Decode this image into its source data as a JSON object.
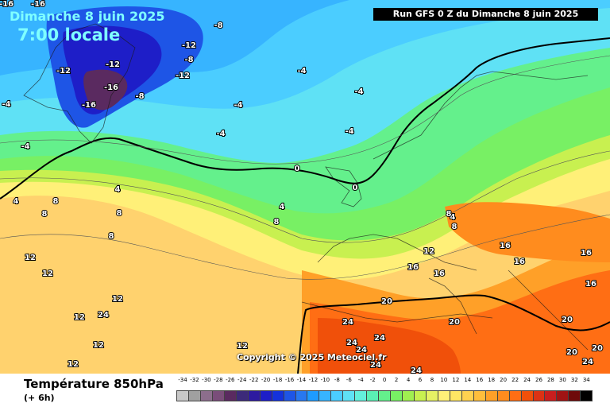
{
  "header": {
    "date_title": "Dimanche 8 juin 2025",
    "time_title": "7:00 locale",
    "run_info": "Run GFS 0 Z du Dimanche 8 juin 2025"
  },
  "copyright": "Copyright © 2025 Meteociel.fr",
  "footer": {
    "title": "Température 850hPa",
    "subtitle": "(+ 6h)"
  },
  "legend": {
    "ticks": [
      "-34",
      "-32",
      "-30",
      "-28",
      "-26",
      "-24",
      "-22",
      "-20",
      "-18",
      "-16",
      "-14",
      "-12",
      "-10",
      "-8",
      "-6",
      "-4",
      "-2",
      "0",
      "2",
      "4",
      "6",
      "8",
      "10",
      "12",
      "14",
      "16",
      "18",
      "20",
      "22",
      "24",
      "26",
      "28",
      "30",
      "32",
      "34"
    ],
    "colors": [
      "#c8c8c8",
      "#a0a0a0",
      "#8c6e8c",
      "#7a4d7a",
      "#5a2a60",
      "#3c2a7a",
      "#2d1aa0",
      "#1e1ec8",
      "#1432dc",
      "#1e55e6",
      "#2878f0",
      "#1e9bff",
      "#37b4ff",
      "#4bcdff",
      "#5fe1f5",
      "#64f0dc",
      "#5af0b4",
      "#64f08c",
      "#78f064",
      "#a0f050",
      "#c8f050",
      "#e6f064",
      "#fff078",
      "#ffe664",
      "#ffd250",
      "#ffbe3c",
      "#ffa028",
      "#ff8c1e",
      "#ff6e14",
      "#f0500a",
      "#dc3214",
      "#c81e1e",
      "#a01414",
      "#6e0a0a",
      "#000000"
    ]
  },
  "labels": [
    {
      "t": "-16"
    },
    {
      "t": "-16"
    },
    {
      "t": "-8"
    },
    {
      "t": "-12"
    },
    {
      "t": "-8"
    },
    {
      "t": "-12"
    },
    {
      "t": "-12"
    },
    {
      "t": "-12"
    },
    {
      "t": "-16"
    },
    {
      "t": "-16"
    },
    {
      "t": "-8"
    },
    {
      "t": "-4"
    },
    {
      "t": "-4"
    },
    {
      "t": "-4"
    },
    {
      "t": "-4"
    },
    {
      "t": "-4"
    },
    {
      "t": "-4"
    },
    {
      "t": "-4"
    },
    {
      "t": "4"
    },
    {
      "t": "0"
    },
    {
      "t": "0"
    },
    {
      "t": "4"
    },
    {
      "t": "8"
    },
    {
      "t": "4"
    },
    {
      "t": "8"
    },
    {
      "t": "8"
    },
    {
      "t": "4"
    },
    {
      "t": "8"
    },
    {
      "t": "8"
    },
    {
      "t": "8"
    },
    {
      "t": "8"
    },
    {
      "t": "12"
    },
    {
      "t": "12"
    },
    {
      "t": "12"
    },
    {
      "t": "12"
    },
    {
      "t": "12"
    },
    {
      "t": "12"
    },
    {
      "t": "12"
    },
    {
      "t": "16"
    },
    {
      "t": "16"
    },
    {
      "t": "16"
    },
    {
      "t": "16"
    },
    {
      "t": "16"
    },
    {
      "t": "16"
    },
    {
      "t": "12"
    },
    {
      "t": "20"
    },
    {
      "t": "20"
    },
    {
      "t": "20"
    },
    {
      "t": "24"
    },
    {
      "t": "24"
    },
    {
      "t": "24"
    },
    {
      "t": "24"
    },
    {
      "t": "24"
    },
    {
      "t": "24"
    },
    {
      "t": "20"
    },
    {
      "t": "24"
    },
    {
      "t": "20"
    },
    {
      "t": "24"
    },
    {
      "t": "12"
    },
    {
      "t": "12"
    }
  ]
}
